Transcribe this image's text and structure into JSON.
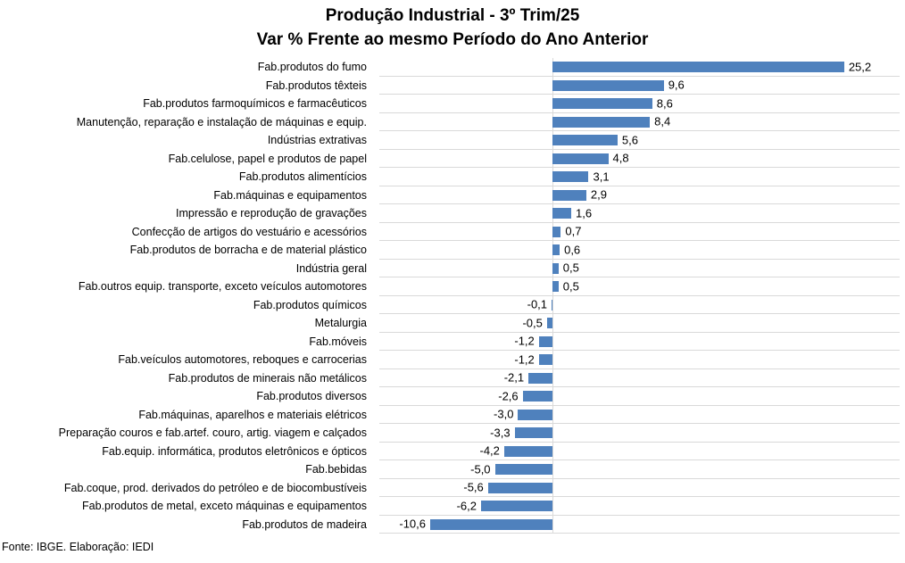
{
  "title": "Produção Industrial - 3º Trim/25",
  "subtitle": "Var % Frente ao mesmo Período do Ano Anterior",
  "footer": "Fonte: IBGE. Elaboração: IEDI",
  "colors": {
    "bar": "#4F81BD",
    "gridline": "#D9D9D9",
    "text": "#000000",
    "background": "#FFFFFF"
  },
  "chart_data": {
    "type": "bar",
    "orientation": "horizontal",
    "title": "Produção Industrial - 3º Trim/25",
    "subtitle": "Var % Frente ao mesmo Período do Ano Anterior",
    "xlabel": "",
    "ylabel": "",
    "xlim": [
      -15,
      30
    ],
    "grid": "horizontal category separators only",
    "legend": "none",
    "value_label_format": "comma decimal, one digit",
    "source_note": "Fonte: IBGE. Elaboração: IEDI",
    "categories": [
      "Fab.produtos do fumo",
      "Fab.produtos têxteis",
      "Fab.produtos farmoquímicos e farmacêuticos",
      "Manutenção, reparação e instalação de máquinas e equip.",
      "Indústrias extrativas",
      "Fab.celulose, papel e produtos de papel",
      "Fab.produtos alimentícios",
      "Fab.máquinas e equipamentos",
      "Impressão e reprodução de gravações",
      "Confecção de artigos do vestuário e acessórios",
      "Fab.produtos de borracha e de material plástico",
      "Indústria geral",
      "Fab.outros equip. transporte, exceto veículos automotores",
      "Fab.produtos químicos",
      "Metalurgia",
      "Fab.móveis",
      "Fab.veículos automotores, reboques e carrocerias",
      "Fab.produtos de minerais não metálicos",
      "Fab.produtos diversos",
      "Fab.máquinas, aparelhos e materiais elétricos",
      "Preparação couros e fab.artef. couro, artig. viagem e calçados",
      "Fab.equip. informática, produtos eletrônicos e ópticos",
      "Fab.bebidas",
      "Fab.coque, prod. derivados do petróleo e de biocombustíveis",
      "Fab.produtos de metal, exceto máquinas e equipamentos",
      "Fab.produtos de madeira"
    ],
    "values": [
      25.2,
      9.6,
      8.6,
      8.4,
      5.6,
      4.8,
      3.1,
      2.9,
      1.6,
      0.7,
      0.6,
      0.5,
      0.5,
      -0.1,
      -0.5,
      -1.2,
      -1.2,
      -2.1,
      -2.6,
      -3.0,
      -3.3,
      -4.2,
      -5.0,
      -5.6,
      -6.2,
      -10.6
    ],
    "value_labels": [
      "25,2",
      "9,6",
      "8,6",
      "8,4",
      "5,6",
      "4,8",
      "3,1",
      "2,9",
      "1,6",
      "0,7",
      "0,6",
      "0,5",
      "0,5",
      "-0,1",
      "-0,5",
      "-1,2",
      "-1,2",
      "-2,1",
      "-2,6",
      "-3,0",
      "-3,3",
      "-4,2",
      "-5,0",
      "-5,6",
      "-6,2",
      "-10,6"
    ]
  }
}
